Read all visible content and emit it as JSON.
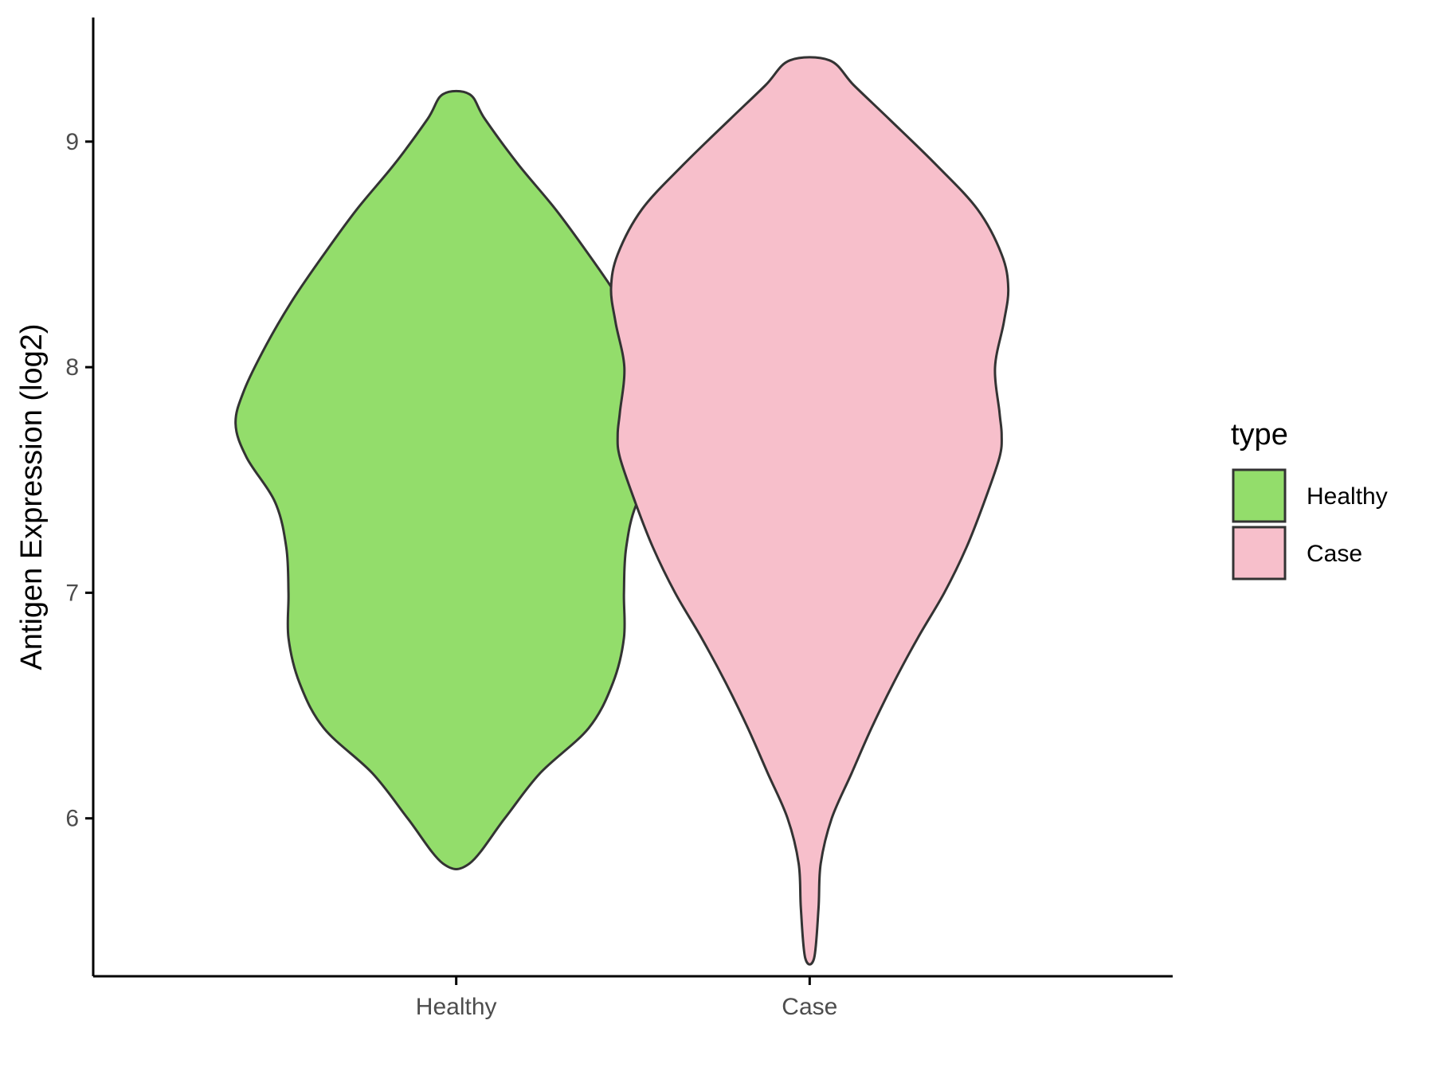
{
  "chart_data": {
    "type": "violin",
    "title": "",
    "xlabel": "",
    "ylabel": "Antigen Expression (log2)",
    "ylim": [
      5.3,
      9.55
    ],
    "yticks": [
      6,
      7,
      8,
      9
    ],
    "categories": [
      "Healthy",
      "Case"
    ],
    "legend": {
      "title": "type",
      "position": "right",
      "entries": [
        {
          "label": "Healthy",
          "color": "#93DD6B"
        },
        {
          "label": "Case",
          "color": "#F7BFCB"
        }
      ]
    },
    "series": [
      {
        "category": "Healthy",
        "color": "#93DD6B",
        "min": 5.8,
        "max": 9.21,
        "density_profile": [
          [
            5.8,
            0.06
          ],
          [
            6.0,
            0.22
          ],
          [
            6.2,
            0.38
          ],
          [
            6.4,
            0.6
          ],
          [
            6.6,
            0.71
          ],
          [
            6.8,
            0.76
          ],
          [
            7.0,
            0.76
          ],
          [
            7.2,
            0.77
          ],
          [
            7.4,
            0.82
          ],
          [
            7.6,
            0.95
          ],
          [
            7.75,
            1.0
          ],
          [
            7.9,
            0.96
          ],
          [
            8.1,
            0.86
          ],
          [
            8.3,
            0.74
          ],
          [
            8.5,
            0.6
          ],
          [
            8.7,
            0.45
          ],
          [
            8.9,
            0.28
          ],
          [
            9.1,
            0.13
          ],
          [
            9.21,
            0.06
          ]
        ]
      },
      {
        "category": "Case",
        "color": "#F7BFCB",
        "min": 5.38,
        "max": 9.36,
        "density_profile": [
          [
            5.38,
            0.02
          ],
          [
            5.6,
            0.04
          ],
          [
            5.8,
            0.05
          ],
          [
            6.0,
            0.1
          ],
          [
            6.2,
            0.19
          ],
          [
            6.4,
            0.28
          ],
          [
            6.6,
            0.38
          ],
          [
            6.8,
            0.49
          ],
          [
            7.0,
            0.61
          ],
          [
            7.2,
            0.71
          ],
          [
            7.4,
            0.79
          ],
          [
            7.6,
            0.86
          ],
          [
            7.7,
            0.87
          ],
          [
            7.8,
            0.86
          ],
          [
            8.0,
            0.84
          ],
          [
            8.2,
            0.88
          ],
          [
            8.35,
            0.9
          ],
          [
            8.5,
            0.87
          ],
          [
            8.7,
            0.76
          ],
          [
            8.9,
            0.57
          ],
          [
            9.1,
            0.36
          ],
          [
            9.25,
            0.2
          ],
          [
            9.36,
            0.09
          ]
        ]
      }
    ]
  }
}
